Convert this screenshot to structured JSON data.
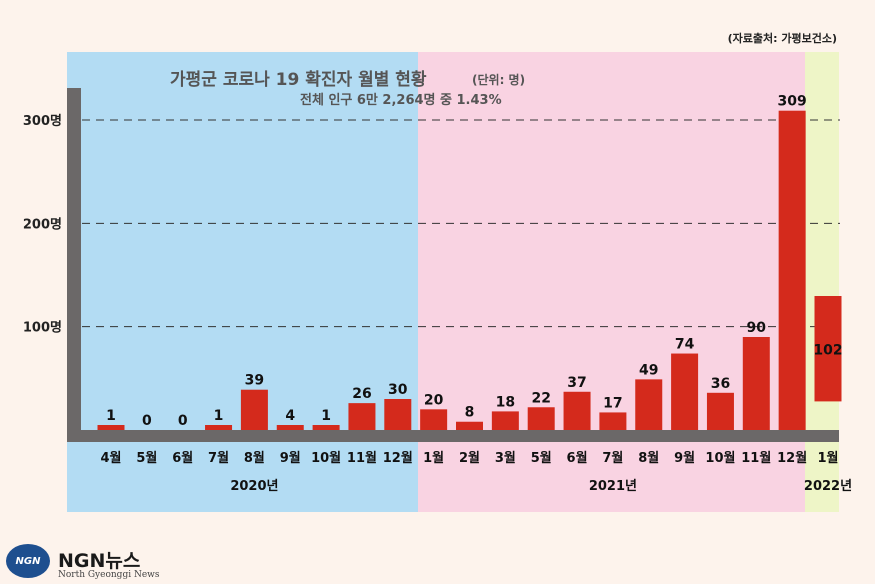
{
  "chart_data": {
    "type": "bar",
    "title": "가평군 코로나 19 확진자 월별 현황",
    "unit_note": "(단위: 명)",
    "subtitle": "전체 인구 6만 2,264명 중 1.43%",
    "source": "(자료출처: 가평보건소)",
    "categories": [
      "4월",
      "5월",
      "6월",
      "7월",
      "8월",
      "9월",
      "10월",
      "11월",
      "12월",
      "1월",
      "2월",
      "3월",
      "5월",
      "6월",
      "7월",
      "8월",
      "9월",
      "10월",
      "11월",
      "12월",
      "1월"
    ],
    "values": [
      1,
      0,
      0,
      1,
      39,
      4,
      1,
      26,
      30,
      20,
      8,
      18,
      22,
      37,
      17,
      49,
      74,
      36,
      90,
      309,
      102
    ],
    "year_groups": [
      {
        "label": "2020년",
        "start": 0,
        "end": 8,
        "color": "#b3dcf3"
      },
      {
        "label": "2021년",
        "start": 9,
        "end": 19,
        "color": "#f9d3e2"
      },
      {
        "label": "2022년",
        "start": 20,
        "end": 20,
        "color": "#eef5c7"
      }
    ],
    "y_ticks": [
      {
        "value": 100,
        "label": "100명"
      },
      {
        "value": 200,
        "label": "200명"
      },
      {
        "value": 300,
        "label": "300명"
      }
    ],
    "ylim": [
      0,
      309
    ],
    "grid": true,
    "bar_color": "#d42a1c"
  },
  "logo": {
    "badge": "NGN",
    "name": "NGN뉴스",
    "sub": "North Gyeonggi News"
  }
}
